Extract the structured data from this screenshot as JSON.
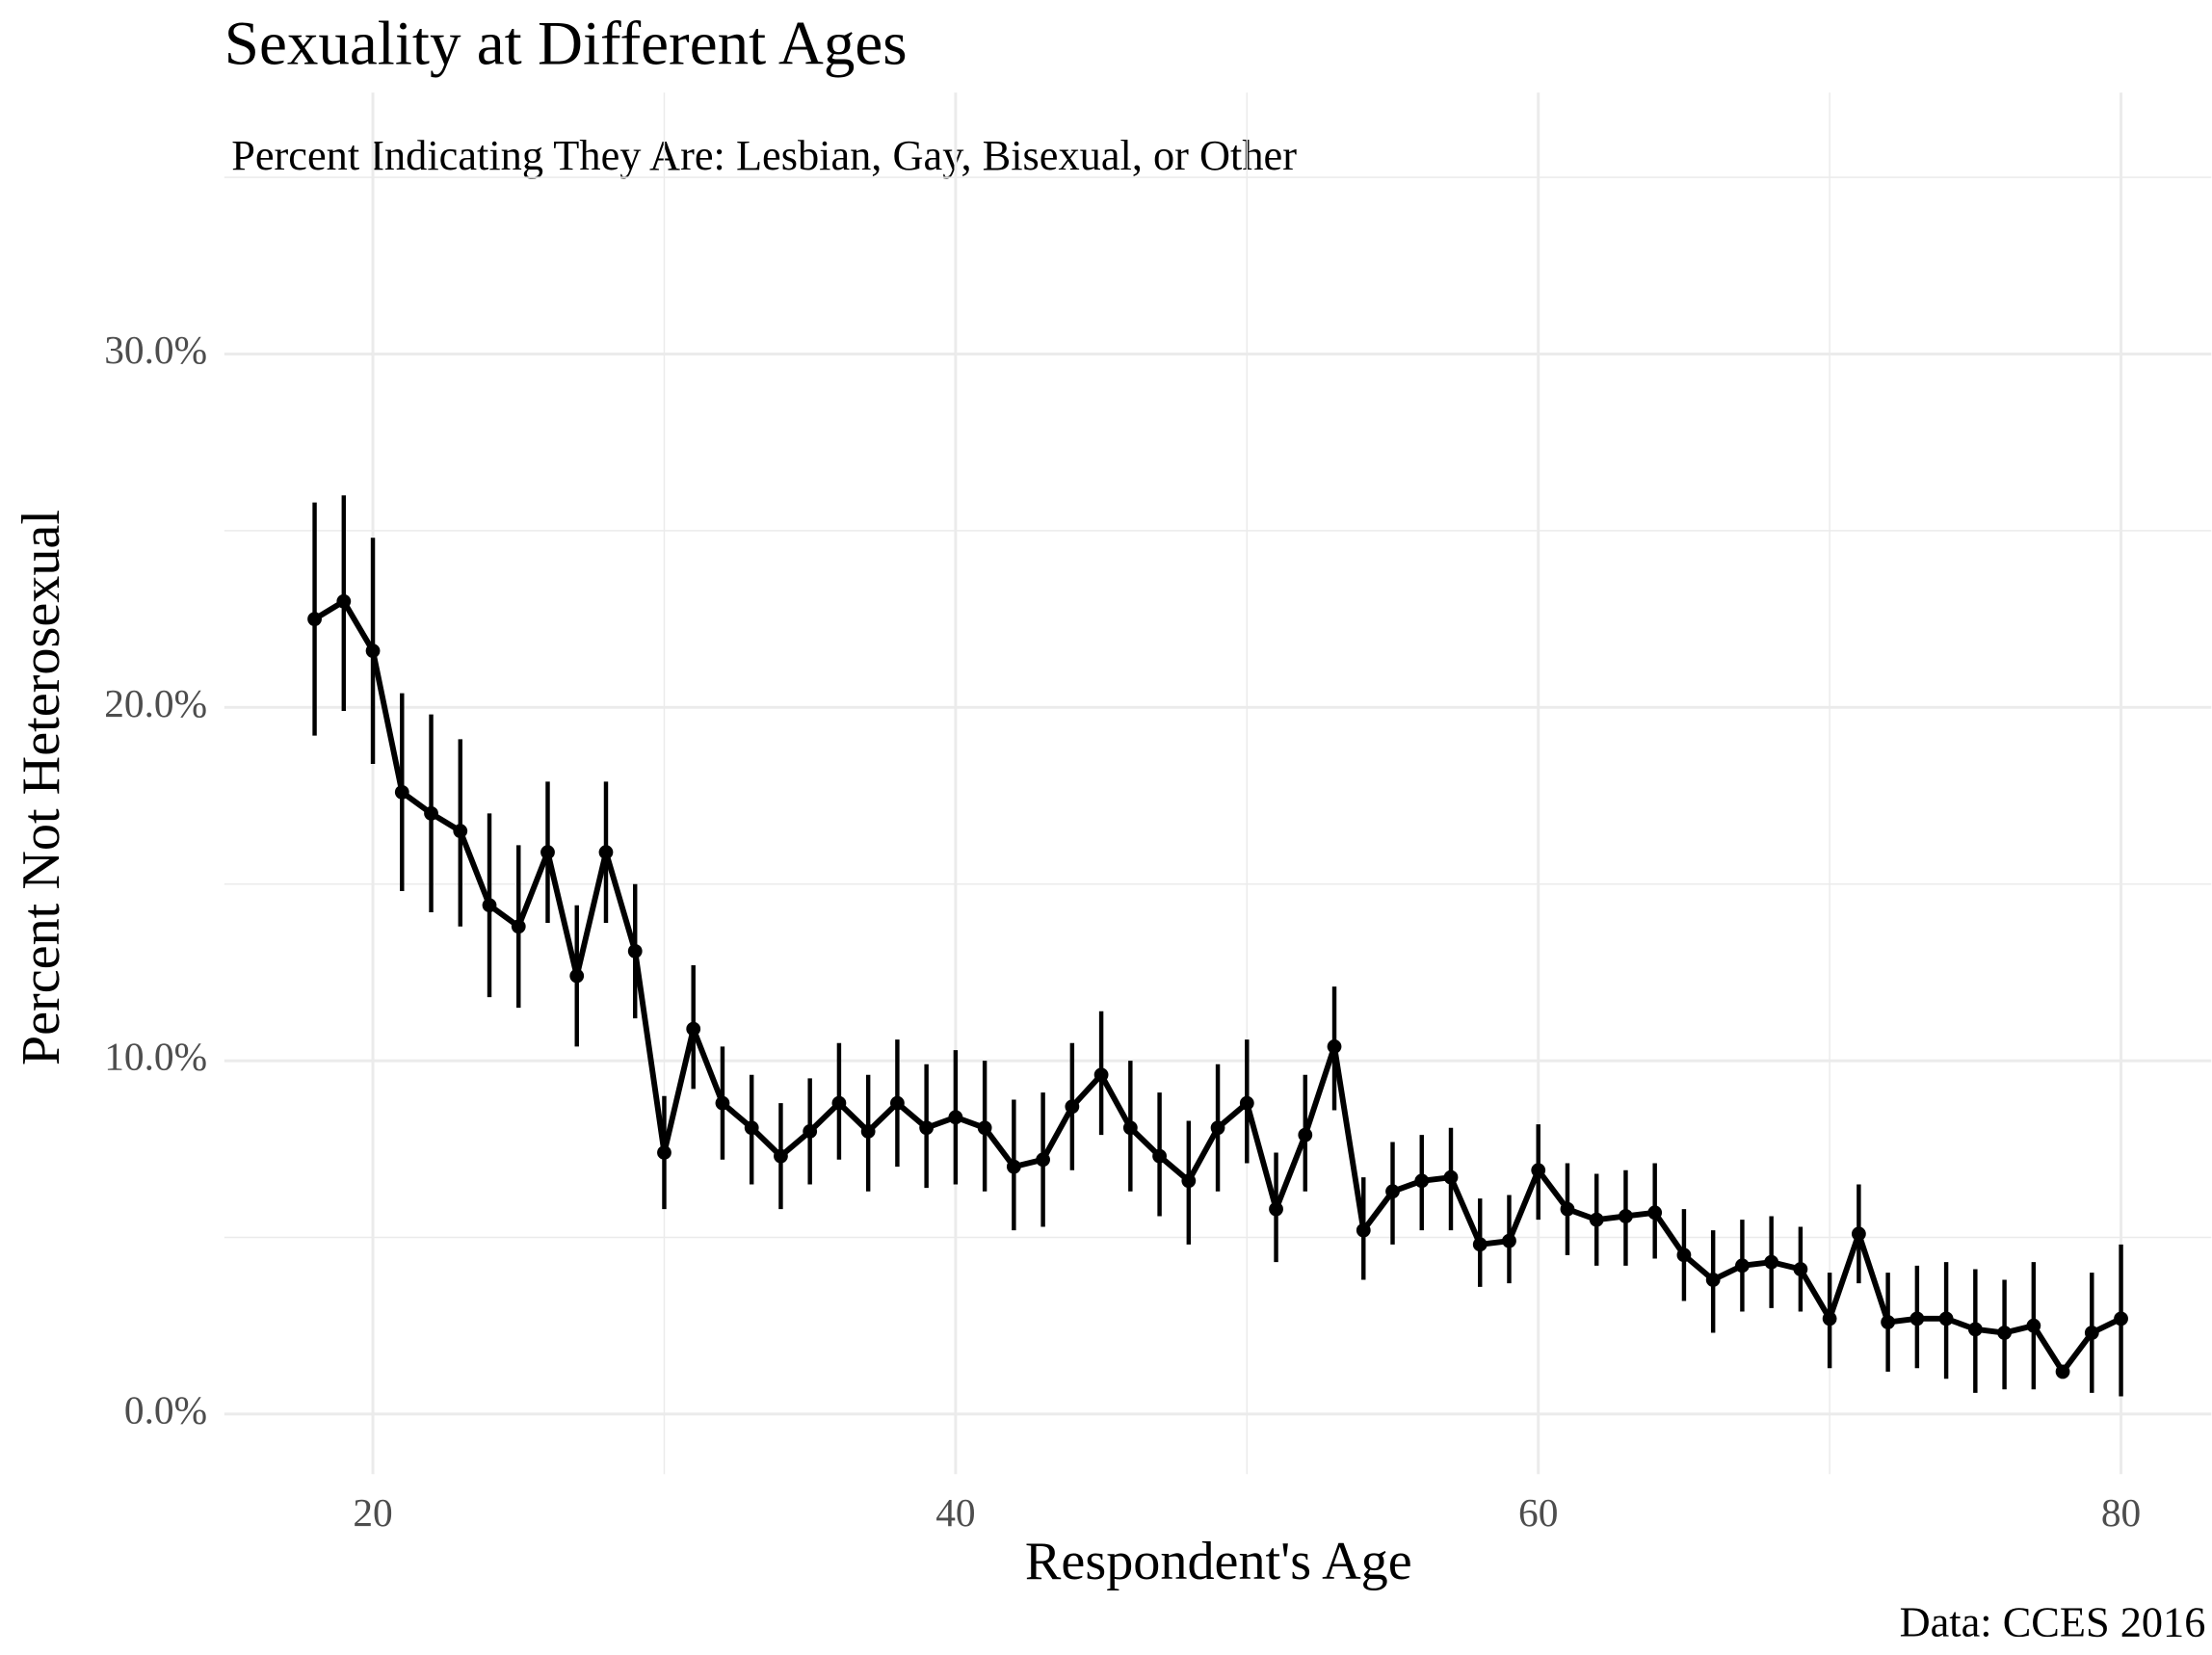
{
  "chart_data": {
    "type": "line",
    "title": "Sexuality at Different Ages",
    "subtitle": "Percent Indicating They Are: Lesbian, Gay, Bisexual, or Other",
    "x_label": "Respondent's Age",
    "y_label": "Percent Not Heterosexual",
    "caption": "Data: CCES 2016",
    "color": "#000000",
    "grid": true,
    "x": [
      18,
      19,
      20,
      21,
      22,
      23,
      24,
      25,
      26,
      27,
      28,
      29,
      30,
      31,
      32,
      33,
      34,
      35,
      36,
      37,
      38,
      39,
      40,
      41,
      42,
      43,
      44,
      45,
      46,
      47,
      48,
      49,
      50,
      51,
      52,
      53,
      54,
      55,
      56,
      57,
      58,
      59,
      60,
      61,
      62,
      63,
      64,
      65,
      66,
      67,
      68,
      69,
      70,
      71,
      72,
      73,
      74,
      75,
      76,
      77,
      78,
      79,
      80
    ],
    "values": [
      22.5,
      23.0,
      21.6,
      17.6,
      17.0,
      16.5,
      14.4,
      13.8,
      15.9,
      12.4,
      15.9,
      13.1,
      7.4,
      10.9,
      8.8,
      8.1,
      7.3,
      8.0,
      8.8,
      8.0,
      8.8,
      8.1,
      8.4,
      8.1,
      7.0,
      7.2,
      8.7,
      9.6,
      8.1,
      7.3,
      6.6,
      8.1,
      8.8,
      5.8,
      7.9,
      10.4,
      5.2,
      6.3,
      6.6,
      6.7,
      4.8,
      4.9,
      6.9,
      5.8,
      5.5,
      5.6,
      5.7,
      4.5,
      3.8,
      4.2,
      4.3,
      4.1,
      2.7,
      5.1,
      2.6,
      2.7,
      2.7,
      2.4,
      2.3,
      2.5,
      1.2,
      2.3,
      2.7
    ],
    "lower": [
      19.2,
      19.9,
      18.4,
      14.8,
      14.2,
      13.8,
      11.8,
      11.5,
      13.9,
      10.4,
      13.9,
      11.2,
      5.8,
      9.2,
      7.2,
      6.5,
      5.8,
      6.5,
      7.2,
      6.3,
      7.0,
      6.4,
      6.5,
      6.3,
      5.2,
      5.3,
      6.9,
      7.9,
      6.3,
      5.6,
      4.8,
      6.3,
      7.1,
      4.3,
      6.3,
      8.6,
      3.8,
      4.8,
      5.2,
      5.2,
      3.6,
      3.7,
      5.5,
      4.5,
      4.2,
      4.2,
      4.4,
      3.2,
      2.3,
      2.9,
      3.0,
      2.9,
      1.3,
      3.7,
      1.2,
      1.3,
      1.0,
      0.6,
      0.7,
      0.7,
      1.0,
      0.6,
      0.5
    ],
    "upper": [
      25.8,
      26.0,
      24.8,
      20.4,
      19.8,
      19.1,
      17.0,
      16.1,
      17.9,
      14.4,
      17.9,
      15.0,
      9.0,
      12.7,
      10.4,
      9.6,
      8.8,
      9.5,
      10.5,
      9.6,
      10.6,
      9.9,
      10.3,
      10.0,
      8.9,
      9.1,
      10.5,
      11.4,
      10.0,
      9.1,
      8.3,
      9.9,
      10.6,
      7.4,
      9.6,
      12.1,
      6.7,
      7.7,
      7.9,
      8.1,
      6.1,
      6.2,
      8.2,
      7.1,
      6.8,
      6.9,
      7.1,
      5.8,
      5.2,
      5.5,
      5.6,
      5.3,
      4.0,
      6.5,
      4.0,
      4.2,
      4.3,
      4.1,
      3.8,
      4.3,
      1.3,
      4.0,
      4.8
    ],
    "xlim": [
      14.9,
      83.1
    ],
    "xticks": [
      20,
      40,
      60,
      80
    ],
    "x_minor_grid": [
      30,
      50,
      70
    ],
    "ylim": [
      -1.7,
      37.4
    ],
    "yticks": [
      {
        "value": 0,
        "label": "0.0%"
      },
      {
        "value": 10,
        "label": "10.0%"
      },
      {
        "value": 20,
        "label": "20.0%"
      },
      {
        "value": 30,
        "label": "30.0%"
      }
    ],
    "y_minor_grid": [
      5,
      15,
      25,
      35
    ]
  }
}
